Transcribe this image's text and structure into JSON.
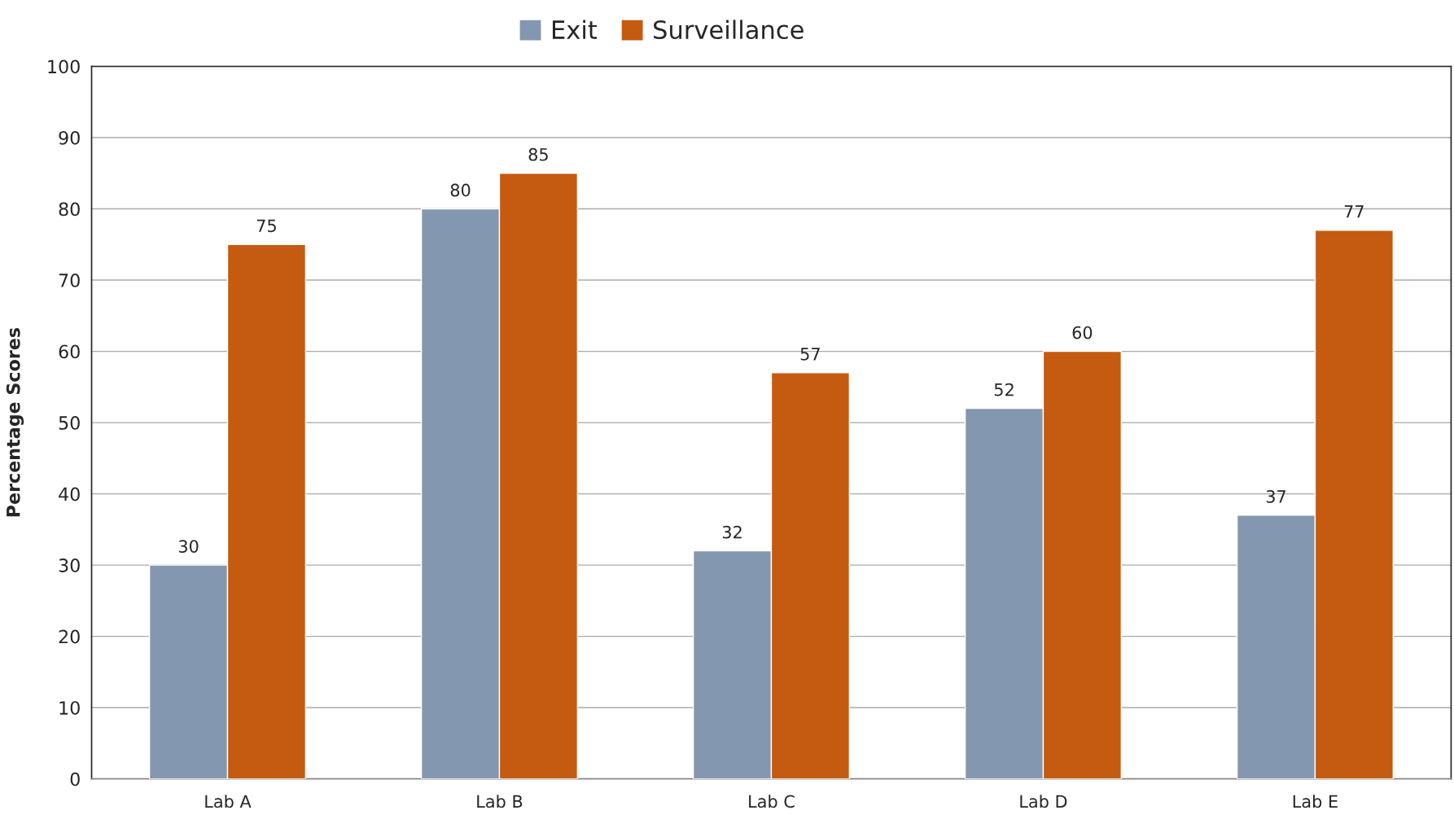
{
  "chart_data": {
    "type": "bar",
    "ylabel": "Percentage Scores",
    "categories": [
      "Lab A",
      "Lab B",
      "Lab C",
      "Lab D",
      "Lab E"
    ],
    "series": [
      {
        "name": "Exit",
        "color": "#8497b0",
        "values": [
          30,
          80,
          32,
          52,
          37
        ]
      },
      {
        "name": "Surveillance",
        "color": "#c55a11",
        "values": [
          75,
          85,
          57,
          60,
          77
        ]
      }
    ],
    "ylim": [
      0,
      100
    ],
    "yticks": [
      0,
      10,
      20,
      30,
      40,
      50,
      60,
      70,
      80,
      90,
      100
    ],
    "grid": "y",
    "legend": "top",
    "data_labels": true
  }
}
